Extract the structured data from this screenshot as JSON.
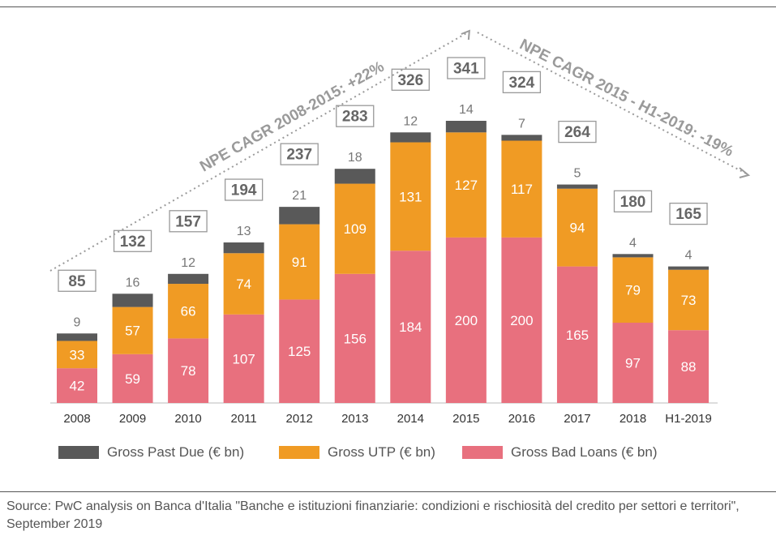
{
  "chart_data": {
    "type": "bar",
    "stacked": true,
    "categories": [
      "2008",
      "2009",
      "2010",
      "2011",
      "2012",
      "2013",
      "2014",
      "2015",
      "2016",
      "2017",
      "2018",
      "H1-2019"
    ],
    "series": [
      {
        "name": "Gross Bad Loans (€ bn)",
        "color": "#e8707e",
        "values": [
          42,
          59,
          78,
          107,
          125,
          156,
          184,
          200,
          200,
          165,
          97,
          88
        ]
      },
      {
        "name": "Gross UTP (€ bn)",
        "color": "#f09b24",
        "values": [
          33,
          57,
          66,
          74,
          91,
          109,
          131,
          127,
          117,
          94,
          79,
          73
        ]
      },
      {
        "name": "Gross Past Due (€ bn)",
        "color": "#595959",
        "values": [
          9,
          16,
          12,
          13,
          21,
          18,
          12,
          14,
          7,
          5,
          4,
          4
        ]
      }
    ],
    "totals": [
      85,
      132,
      157,
      194,
      237,
      283,
      326,
      341,
      324,
      264,
      180,
      165
    ],
    "annotations": [
      "NPE CAGR 2008-2015: +22%",
      "NPE CAGR 2015 - H1-2019: -19%"
    ],
    "ylim": [
      0,
      341
    ],
    "grid": false,
    "legend_position": "bottom"
  },
  "legend": [
    {
      "label": "Gross Past Due (€ bn)",
      "color": "#595959"
    },
    {
      "label": "Gross UTP (€ bn)",
      "color": "#f09b24"
    },
    {
      "label": "Gross Bad Loans (€ bn)",
      "color": "#e8707e"
    }
  ],
  "source": "Source: PwC analysis on Banca d'Italia \"Banche e istituzioni finanziarie: condizioni e rischiosità del credito per settori e territori\", September 2019"
}
